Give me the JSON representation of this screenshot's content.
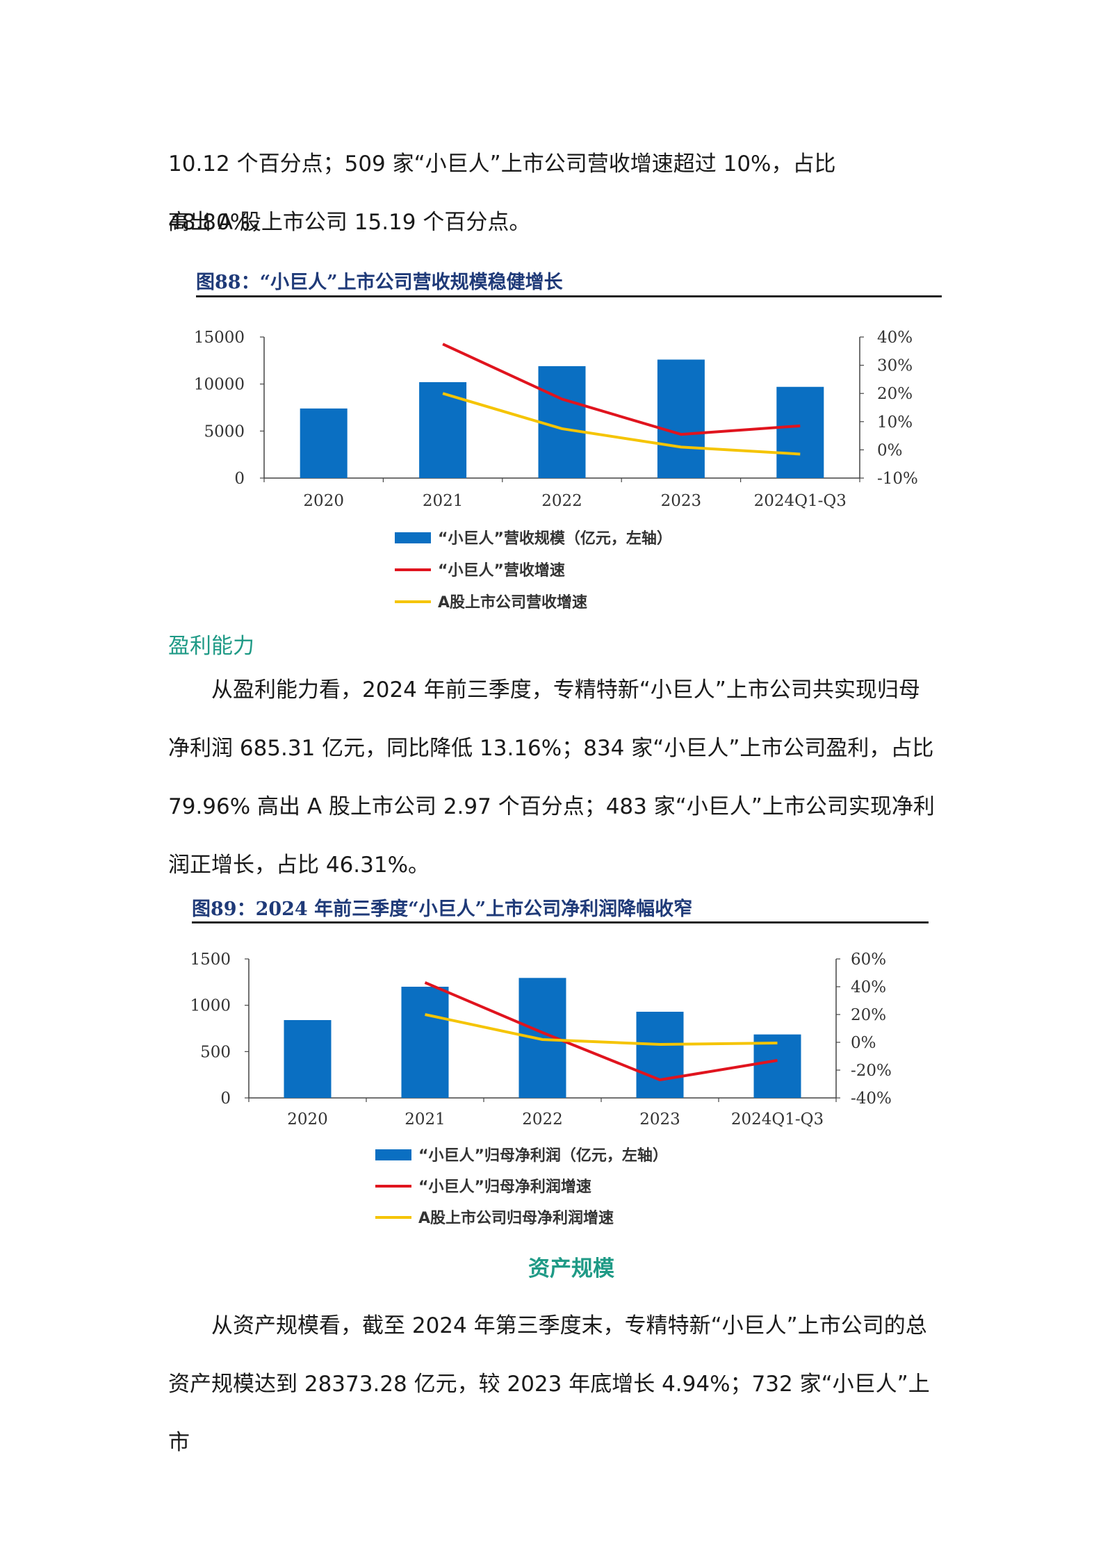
{
  "paragraphs": {
    "p1_line1": "10.12 个百分点；509 家“小巨人”上市公司营收增速超过 10%，占比 48.80%，",
    "p1_line2": "高出 A 股上市公司 15.19 个百分点。",
    "p2": "从盈利能力看，2024 年前三季度，专精特新“小巨人”上市公司共实现归母净利润 685.31 亿元，同比降低 13.16%；834 家“小巨人”上市公司盈利，占比 79.96% 高出 A 股上市公司 2.97 个百分点；483 家“小巨人”上市公司实现净利润正增长，占比 46.31%。",
    "p3": "从资产规模看，截至 2024 年第三季度末，专精特新“小巨人”上市公司的总资产规模达到 28373.28 亿元，较 2023 年底增长 4.94%；732 家“小巨人”上市"
  },
  "headings": {
    "profitability": "盈利能力",
    "asset_scale": "资产规模"
  },
  "figures": {
    "fig88_title": "图88：“小巨人”上市公司营收规模稳健增长",
    "fig89_title": "图89：2024 年前三季度“小巨人”上市公司净利润降幅收窄"
  },
  "chart_data": [
    {
      "type": "bar",
      "categories": [
        "2020",
        "2021",
        "2022",
        "2023",
        "2024Q1-Q3"
      ],
      "y_left_ticks": [
        "0",
        "5000",
        "10000",
        "15000"
      ],
      "y_right_ticks": [
        "-10%",
        "0%",
        "10%",
        "20%",
        "30%",
        "40%"
      ],
      "ylim_left": [
        0,
        15000
      ],
      "ylim_right": [
        -10,
        40
      ],
      "series": [
        {
          "name": "“小巨人”营收规模（亿元，左轴）",
          "kind": "bar",
          "axis": "left",
          "color": "#0a6fc2",
          "values": [
            7400,
            10200,
            11900,
            12600,
            9700
          ]
        },
        {
          "name": "“小巨人”营收增速",
          "kind": "line",
          "axis": "right",
          "color": "#e0141e",
          "values": [
            null,
            37.5,
            18,
            5.5,
            8.5
          ]
        },
        {
          "name": "A股上市公司营收增速",
          "kind": "line",
          "axis": "right",
          "color": "#f5c400",
          "values": [
            null,
            20,
            7.5,
            1,
            -1.5
          ]
        }
      ],
      "grid": false,
      "legend": "bottom"
    },
    {
      "type": "bar",
      "categories": [
        "2020",
        "2021",
        "2022",
        "2023",
        "2024Q1-Q3"
      ],
      "y_left_ticks": [
        "0",
        "500",
        "1000",
        "1500"
      ],
      "y_right_ticks": [
        "-40%",
        "-20%",
        "0%",
        "20%",
        "40%",
        "60%"
      ],
      "ylim_left": [
        0,
        1500
      ],
      "ylim_right": [
        -40,
        60
      ],
      "series": [
        {
          "name": "“小巨人”归母净利润（亿元，左轴）",
          "kind": "bar",
          "axis": "left",
          "color": "#0a6fc2",
          "values": [
            840,
            1200,
            1295,
            930,
            685
          ]
        },
        {
          "name": "“小巨人”归母净利润增速",
          "kind": "line",
          "axis": "right",
          "color": "#e0141e",
          "values": [
            null,
            43,
            7,
            -27,
            -13
          ]
        },
        {
          "name": "A股上市公司归母净利润增速",
          "kind": "line",
          "axis": "right",
          "color": "#f5c400",
          "values": [
            null,
            20,
            2,
            -1.5,
            -0.5
          ]
        }
      ],
      "grid": false,
      "legend": "bottom"
    }
  ]
}
